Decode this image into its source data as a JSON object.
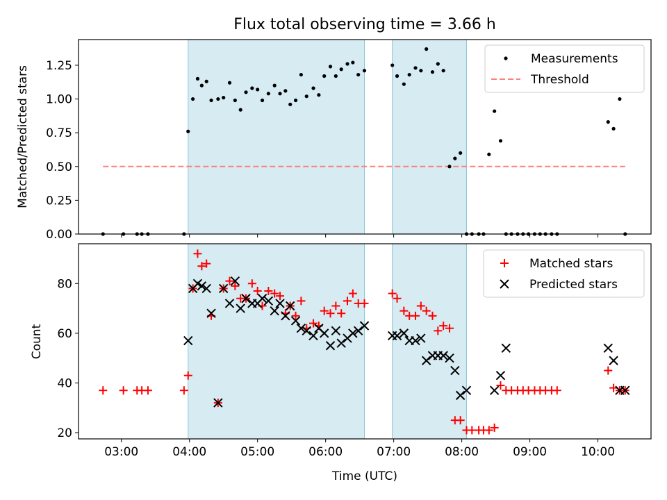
{
  "title": "Flux total observing time = 3.66 h",
  "chart_data": [
    {
      "type": "scatter",
      "panel": "top",
      "ylabel": "Matched/Predicted stars",
      "xlabel": "",
      "xlim": [
        2.37,
        10.78
      ],
      "ylim": [
        0.0,
        1.44
      ],
      "yticks": [
        0.0,
        0.25,
        0.5,
        0.75,
        1.0,
        1.25
      ],
      "ytick_labels": [
        "0.00",
        "0.25",
        "0.50",
        "0.75",
        "1.00",
        "1.25"
      ],
      "shaded_intervals": [
        [
          3.98,
          6.57
        ],
        [
          6.98,
          8.07
        ]
      ],
      "legend": {
        "position": "top-right",
        "entries": [
          "Measurements",
          "Threshold"
        ]
      },
      "threshold": {
        "name": "Threshold",
        "value": 0.5,
        "x_range": [
          2.73,
          10.4
        ],
        "color": "#ff7f7f"
      },
      "series": [
        {
          "name": "Measurements",
          "color": "#000000",
          "marker": "dot",
          "x": [
            2.73,
            3.03,
            3.23,
            3.3,
            3.39,
            3.92,
            3.98,
            4.05,
            4.12,
            4.18,
            4.25,
            4.32,
            4.42,
            4.5,
            4.59,
            4.67,
            4.75,
            4.83,
            4.92,
            5.0,
            5.07,
            5.16,
            5.25,
            5.33,
            5.41,
            5.48,
            5.56,
            5.64,
            5.72,
            5.82,
            5.9,
            5.98,
            6.07,
            6.15,
            6.23,
            6.32,
            6.4,
            6.48,
            6.57,
            6.98,
            7.05,
            7.15,
            7.23,
            7.32,
            7.4,
            7.48,
            7.57,
            7.65,
            7.73,
            7.82,
            7.9,
            7.98,
            8.07,
            8.15,
            8.25,
            8.32,
            8.4,
            8.48,
            8.57,
            8.65,
            8.73,
            8.82,
            8.9,
            8.98,
            9.07,
            9.15,
            9.23,
            9.32,
            9.4,
            10.15,
            10.23,
            10.32,
            10.4
          ],
          "y": [
            0.0,
            0.0,
            0.0,
            0.0,
            0.0,
            0.0,
            0.76,
            1.0,
            1.15,
            1.1,
            1.13,
            0.99,
            1.0,
            1.01,
            1.12,
            0.99,
            0.92,
            1.05,
            1.08,
            1.07,
            0.99,
            1.04,
            1.1,
            1.04,
            1.06,
            0.96,
            0.99,
            1.18,
            1.02,
            1.08,
            1.03,
            1.17,
            1.24,
            1.17,
            1.22,
            1.26,
            1.27,
            1.18,
            1.21,
            1.25,
            1.17,
            1.11,
            1.18,
            1.23,
            1.21,
            1.37,
            1.2,
            1.26,
            1.21,
            0.5,
            0.56,
            0.6,
            0.0,
            0.0,
            0.0,
            0.0,
            0.59,
            0.91,
            0.69,
            0.0,
            0.0,
            0.0,
            0.0,
            0.0,
            0.0,
            0.0,
            0.0,
            0.0,
            0.0,
            0.83,
            0.78,
            1.0,
            0.0
          ]
        }
      ]
    },
    {
      "type": "scatter",
      "panel": "bottom",
      "ylabel": "Count",
      "xlabel": "Time (UTC)",
      "xlim": [
        2.37,
        10.78
      ],
      "ylim": [
        17.5,
        96.0
      ],
      "yticks": [
        20,
        40,
        60,
        80
      ],
      "ytick_labels": [
        "20",
        "40",
        "60",
        "80"
      ],
      "xticks": [
        3,
        4,
        5,
        6,
        7,
        8,
        9,
        10
      ],
      "xtick_labels": [
        "03:00",
        "04:00",
        "05:00",
        "06:00",
        "07:00",
        "08:00",
        "09:00",
        "10:00"
      ],
      "shaded_intervals": [
        [
          3.98,
          6.57
        ],
        [
          6.98,
          8.07
        ]
      ],
      "legend": {
        "position": "top-right",
        "entries": [
          "Matched stars",
          "Predicted stars"
        ]
      },
      "series": [
        {
          "name": "Matched stars",
          "color": "#ff0000",
          "marker": "plus",
          "x": [
            2.73,
            3.03,
            3.23,
            3.3,
            3.39,
            3.92,
            3.98,
            4.05,
            4.12,
            4.18,
            4.25,
            4.32,
            4.42,
            4.5,
            4.59,
            4.67,
            4.75,
            4.83,
            4.92,
            5.0,
            5.07,
            5.16,
            5.25,
            5.33,
            5.41,
            5.48,
            5.56,
            5.64,
            5.72,
            5.82,
            5.9,
            5.98,
            6.07,
            6.15,
            6.23,
            6.32,
            6.4,
            6.48,
            6.57,
            6.98,
            7.05,
            7.15,
            7.23,
            7.32,
            7.4,
            7.48,
            7.57,
            7.65,
            7.73,
            7.82,
            7.9,
            7.98,
            8.07,
            8.15,
            8.25,
            8.32,
            8.4,
            8.48,
            8.57,
            8.65,
            8.73,
            8.82,
            8.9,
            8.98,
            9.07,
            9.15,
            9.23,
            9.32,
            9.4,
            10.15,
            10.23,
            10.32,
            10.4
          ],
          "y": [
            37,
            37,
            37,
            37,
            37,
            37,
            43,
            78,
            92,
            87,
            88,
            67,
            32,
            78,
            81,
            79,
            74,
            74,
            80,
            77,
            71,
            77,
            76,
            75,
            68,
            71,
            67,
            73,
            62,
            64,
            63,
            69,
            68,
            71,
            68,
            73,
            76,
            72,
            72,
            76,
            74,
            69,
            67,
            67,
            71,
            69,
            67,
            61,
            63,
            62,
            25,
            25,
            21,
            21,
            21,
            21,
            21,
            22,
            39,
            37,
            37,
            37,
            37,
            37,
            37,
            37,
            37,
            37,
            37,
            45,
            38,
            37,
            37
          ]
        },
        {
          "name": "Predicted stars",
          "color": "#000000",
          "marker": "x",
          "x": [
            3.98,
            4.05,
            4.12,
            4.18,
            4.25,
            4.32,
            4.42,
            4.5,
            4.59,
            4.67,
            4.75,
            4.83,
            4.92,
            5.0,
            5.07,
            5.16,
            5.25,
            5.33,
            5.41,
            5.48,
            5.56,
            5.64,
            5.72,
            5.82,
            5.9,
            5.98,
            6.07,
            6.15,
            6.23,
            6.32,
            6.4,
            6.48,
            6.57,
            6.98,
            7.05,
            7.15,
            7.23,
            7.32,
            7.4,
            7.48,
            7.57,
            7.65,
            7.73,
            7.82,
            7.9,
            7.98,
            8.07,
            8.48,
            8.57,
            8.65,
            10.15,
            10.23,
            10.32,
            10.4
          ],
          "y": [
            57,
            78,
            80,
            79,
            78,
            68,
            32,
            78,
            72,
            81,
            70,
            74,
            72,
            72,
            74,
            73,
            69,
            72,
            67,
            71,
            65,
            62,
            61,
            59,
            62,
            60,
            55,
            61,
            56,
            58,
            60,
            61,
            63,
            59,
            59,
            60,
            57,
            57,
            58,
            49,
            51,
            51,
            51,
            50,
            45,
            35,
            37,
            37,
            43,
            54,
            54,
            49,
            37,
            37
          ]
        }
      ]
    }
  ]
}
